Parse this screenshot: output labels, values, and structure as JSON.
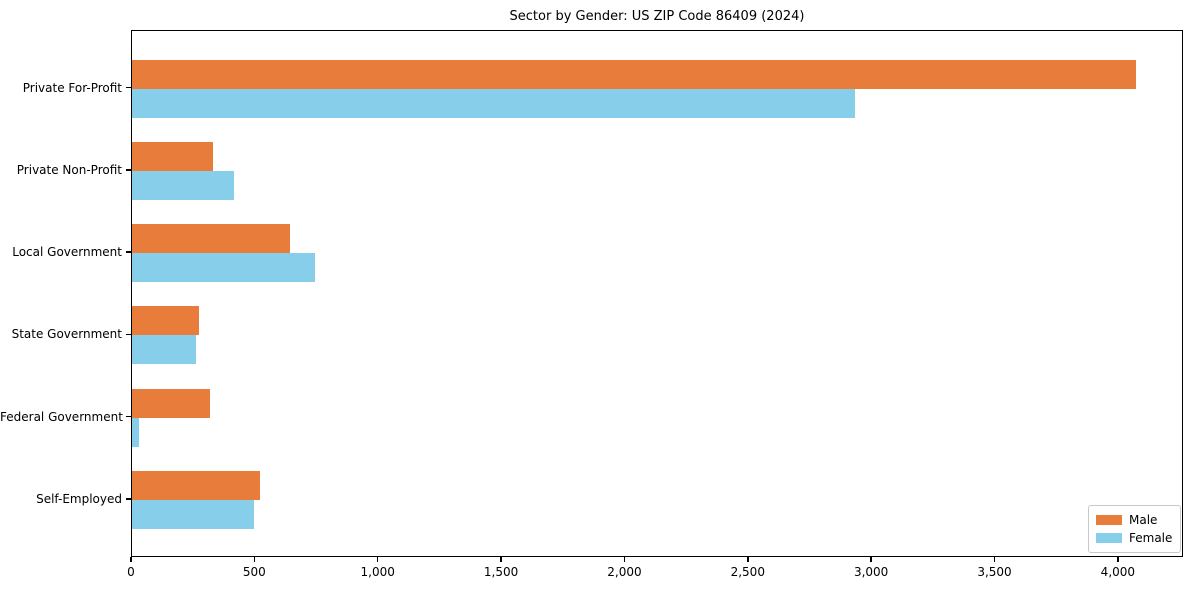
{
  "title": "Sector by Gender: US ZIP Code 86409 (2024)",
  "chart_data": {
    "type": "bar",
    "orientation": "horizontal",
    "title": "Sector by Gender: US ZIP Code 86409 (2024)",
    "categories": [
      "Private For-Profit",
      "Private Non-Profit",
      "Local Government",
      "State Government",
      "Federal Government",
      "Self-Employed"
    ],
    "series": [
      {
        "name": "Male",
        "color": "#e87d3b",
        "values": [
          4070,
          330,
          640,
          270,
          315,
          520
        ]
      },
      {
        "name": "Female",
        "color": "#87ceeb",
        "values": [
          2930,
          415,
          740,
          260,
          30,
          495
        ]
      }
    ],
    "xlabel": "",
    "ylabel": "",
    "xlim": [
      0,
      4264
    ],
    "x_ticks": [
      0,
      500,
      1000,
      1500,
      2000,
      2500,
      3000,
      3500,
      4000
    ],
    "x_tick_labels": [
      "0",
      "500",
      "1,000",
      "1,500",
      "2,000",
      "2,500",
      "3,000",
      "3,500",
      "4,000"
    ],
    "grid": false,
    "legend_position": "lower right"
  },
  "legend": {
    "items": [
      {
        "label": "Male",
        "color": "#e87d3b"
      },
      {
        "label": "Female",
        "color": "#87ceeb"
      }
    ]
  }
}
